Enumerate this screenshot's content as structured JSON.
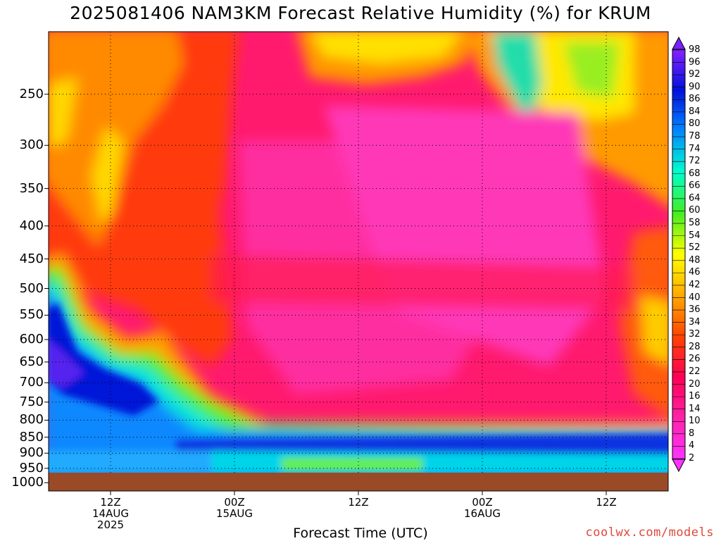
{
  "chart_data": {
    "type": "heatmap",
    "title": "2025081406 NAM3KM Forecast Relative Humidity (%) for KRUM",
    "xlabel": "Forecast Time (UTC)",
    "ylabel": "",
    "y_scale": "pressure (hPa), inverted",
    "y_ticks": [
      250,
      300,
      350,
      400,
      450,
      500,
      550,
      600,
      650,
      700,
      750,
      800,
      850,
      900,
      950,
      1000
    ],
    "x_ticks": [
      {
        "line1": "12Z",
        "line2": "14AUG",
        "line3": "2025"
      },
      {
        "line1": "00Z",
        "line2": "15AUG",
        "line3": ""
      },
      {
        "line1": "12Z",
        "line2": "",
        "line3": ""
      },
      {
        "line1": "00Z",
        "line2": "16AUG",
        "line3": ""
      },
      {
        "line1": "12Z",
        "line2": "",
        "line3": ""
      }
    ],
    "x_hours": [
      12,
      24,
      36,
      48,
      60
    ],
    "x_range_hours": [
      6,
      66
    ],
    "y_range": [
      200,
      1030
    ],
    "colorbar": [
      98,
      96,
      92,
      90,
      86,
      84,
      80,
      78,
      74,
      72,
      68,
      66,
      64,
      60,
      58,
      54,
      52,
      48,
      46,
      42,
      40,
      36,
      34,
      32,
      28,
      26,
      22,
      20,
      16,
      14,
      10,
      8,
      4,
      2
    ],
    "grid": "dotted",
    "ground": "below ~985 hPa"
  },
  "watermark": "coolwx.com/models"
}
